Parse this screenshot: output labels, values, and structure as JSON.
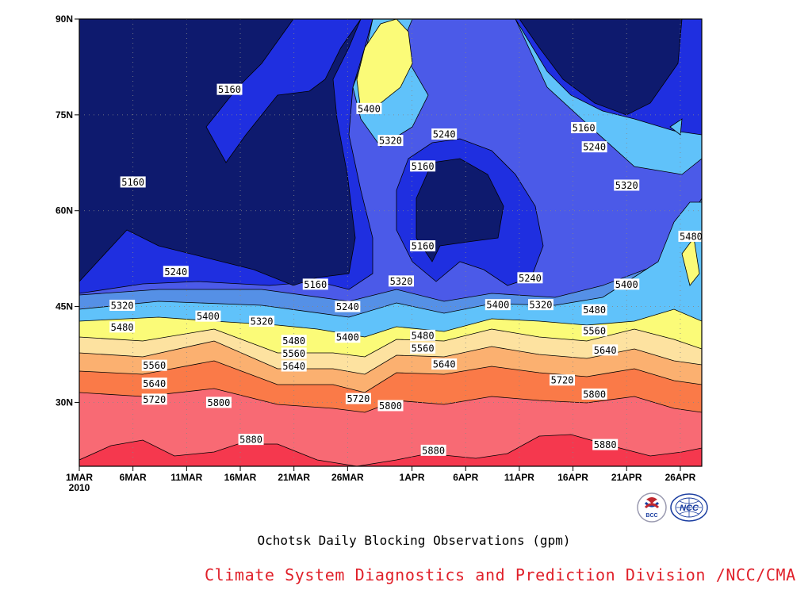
{
  "chart_data": {
    "type": "heatmap",
    "subtype": "filled-contour",
    "x_axis": {
      "type": "date",
      "range": [
        "2010-03-01",
        "2010-04-28"
      ],
      "tick_labels": [
        "1MAR",
        "6MAR",
        "11MAR",
        "16MAR",
        "21MAR",
        "26MAR",
        "1APR",
        "6APR",
        "11APR",
        "16APR",
        "21APR",
        "26APR"
      ],
      "year_label": "2010"
    },
    "y_axis": {
      "type": "latitude",
      "range": [
        20,
        90
      ],
      "tick_labels": [
        "30N",
        "45N",
        "60N",
        "75N",
        "90N"
      ]
    },
    "grid": true,
    "contour_levels": [
      5160,
      5240,
      5320,
      5400,
      5480,
      5560,
      5640,
      5720,
      5800,
      5880
    ],
    "band_colors": [
      "#0e1a6e",
      "#1f2fe0",
      "#4b5ae8",
      "#5590e6",
      "#60c2fa",
      "#fbfb78",
      "#fde2a0",
      "#fbb070",
      "#fa7a48",
      "#f86a74",
      "#f5384e"
    ],
    "contour_labels": [
      {
        "text": "5160",
        "date": "2010-03-15",
        "lat": 79
      },
      {
        "text": "5400",
        "date": "2010-03-28",
        "lat": 76
      },
      {
        "text": "5320",
        "date": "2010-03-30",
        "lat": 71
      },
      {
        "text": "5240",
        "date": "2010-04-04",
        "lat": 72
      },
      {
        "text": "5160",
        "date": "2010-04-02",
        "lat": 67
      },
      {
        "text": "5160",
        "date": "2010-03-06",
        "lat": 64.5
      },
      {
        "text": "5160",
        "date": "2010-04-02",
        "lat": 54.5
      },
      {
        "text": "5160",
        "date": "2010-04-17",
        "lat": 73
      },
      {
        "text": "5240",
        "date": "2010-04-18",
        "lat": 70
      },
      {
        "text": "5320",
        "date": "2010-04-21",
        "lat": 64
      },
      {
        "text": "5480",
        "date": "2010-04-27",
        "lat": 56
      },
      {
        "text": "5240",
        "date": "2010-03-10",
        "lat": 50.5
      },
      {
        "text": "5160",
        "date": "2010-03-23",
        "lat": 48.5
      },
      {
        "text": "5320",
        "date": "2010-03-31",
        "lat": 49
      },
      {
        "text": "5240",
        "date": "2010-04-12",
        "lat": 49.5
      },
      {
        "text": "5400",
        "date": "2010-04-21",
        "lat": 48.5
      },
      {
        "text": "5320",
        "date": "2010-03-05",
        "lat": 45.2
      },
      {
        "text": "5240",
        "date": "2010-03-26",
        "lat": 45
      },
      {
        "text": "5400",
        "date": "2010-04-09",
        "lat": 45.3
      },
      {
        "text": "5320",
        "date": "2010-04-13",
        "lat": 45.3
      },
      {
        "text": "5480",
        "date": "2010-04-18",
        "lat": 44.5
      },
      {
        "text": "5400",
        "date": "2010-03-13",
        "lat": 43.5
      },
      {
        "text": "5320",
        "date": "2010-03-18",
        "lat": 42.7
      },
      {
        "text": "5480",
        "date": "2010-03-05",
        "lat": 41.8
      },
      {
        "text": "5480",
        "date": "2010-04-02",
        "lat": 40.5
      },
      {
        "text": "5560",
        "date": "2010-04-18",
        "lat": 41.2
      },
      {
        "text": "5400",
        "date": "2010-03-26",
        "lat": 40.2
      },
      {
        "text": "5480",
        "date": "2010-03-21",
        "lat": 39.7
      },
      {
        "text": "5560",
        "date": "2010-04-02",
        "lat": 38.5
      },
      {
        "text": "5640",
        "date": "2010-04-19",
        "lat": 38.2
      },
      {
        "text": "5560",
        "date": "2010-03-21",
        "lat": 37.7
      },
      {
        "text": "5560",
        "date": "2010-03-08",
        "lat": 35.8
      },
      {
        "text": "5640",
        "date": "2010-03-21",
        "lat": 35.7
      },
      {
        "text": "5640",
        "date": "2010-04-04",
        "lat": 36
      },
      {
        "text": "5640",
        "date": "2010-03-08",
        "lat": 33
      },
      {
        "text": "5720",
        "date": "2010-04-15",
        "lat": 33.5
      },
      {
        "text": "5720",
        "date": "2010-03-08",
        "lat": 30.5
      },
      {
        "text": "5800",
        "date": "2010-03-14",
        "lat": 30
      },
      {
        "text": "5720",
        "date": "2010-03-27",
        "lat": 30.6
      },
      {
        "text": "5800",
        "date": "2010-03-30",
        "lat": 29.5
      },
      {
        "text": "5800",
        "date": "2010-04-18",
        "lat": 31.3
      },
      {
        "text": "5880",
        "date": "2010-03-17",
        "lat": 24.2
      },
      {
        "text": "5880",
        "date": "2010-04-19",
        "lat": 23.4
      },
      {
        "text": "5880",
        "date": "2010-04-03",
        "lat": 22.5
      }
    ]
  },
  "caption": {
    "title": "Ochotsk Daily Blocking Observations (gpm)",
    "credit": "Climate System Diagnostics and Prediction Division /NCC/CMA"
  },
  "logos": [
    {
      "name": "BCC",
      "text": "BCC",
      "colors": [
        "#c0282f",
        "#1a3da0"
      ]
    },
    {
      "name": "NCC",
      "text": "NCC",
      "colors": [
        "#1a3da0"
      ]
    }
  ]
}
